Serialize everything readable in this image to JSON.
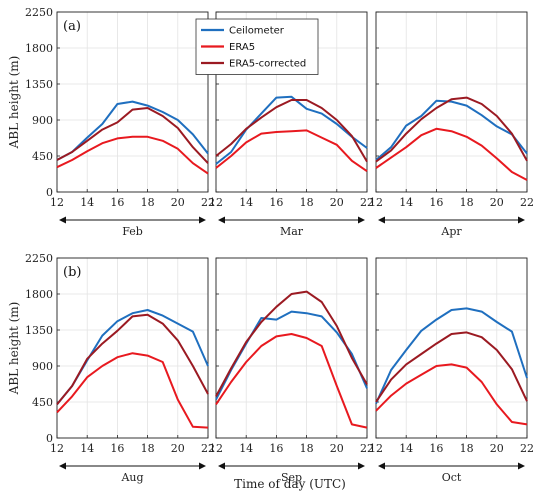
{
  "chart_data": {
    "type": "line",
    "x": [
      12,
      13,
      14,
      15,
      16,
      17,
      18,
      19,
      20,
      21,
      22
    ],
    "xticks": [
      12,
      14,
      16,
      18,
      20,
      22
    ],
    "yticks": [
      0,
      450,
      900,
      1350,
      1800,
      2250
    ],
    "xlim": [
      12,
      22
    ],
    "ylim": [
      0,
      2250
    ],
    "ylabel": "ABL height (m)",
    "xlabel": "Time of day (UTC)",
    "legend": {
      "placement": "top-center of panel (a)",
      "entries": [
        "Ceilometer",
        "ERA5",
        "ERA5-corrected"
      ]
    },
    "colors": {
      "Ceilometer": "#1f6fbf",
      "ERA5": "#e8191f",
      "ERA5-corrected": "#9b1a22"
    },
    "rows": [
      {
        "label": "(a)",
        "panels": [
          {
            "month": "Feb",
            "series": [
              {
                "name": "Ceilometer",
                "values": [
                  400,
                  500,
                  680,
                  850,
                  1100,
                  1130,
                  1080,
                  1000,
                  900,
                  720,
                  480
                ]
              },
              {
                "name": "ERA5",
                "values": [
                  310,
                  400,
                  510,
                  610,
                  670,
                  690,
                  690,
                  640,
                  540,
                  360,
                  230
                ]
              },
              {
                "name": "ERA5-corrected",
                "values": [
                  400,
                  500,
                  640,
                  780,
                  870,
                  1030,
                  1050,
                  950,
                  800,
                  560,
                  360
                ]
              }
            ]
          },
          {
            "month": "Mar",
            "series": [
              {
                "name": "Ceilometer",
                "values": [
                  350,
                  500,
                  780,
                  980,
                  1180,
                  1190,
                  1040,
                  980,
                  850,
                  690,
                  550
                ]
              },
              {
                "name": "ERA5",
                "values": [
                  300,
                  450,
                  620,
                  730,
                  750,
                  760,
                  770,
                  680,
                  590,
                  390,
                  260
                ]
              },
              {
                "name": "ERA5-corrected",
                "values": [
                  450,
                  600,
                  790,
                  930,
                  1060,
                  1150,
                  1150,
                  1050,
                  900,
                  700,
                  380
                ]
              }
            ]
          },
          {
            "month": "Apr",
            "series": [
              {
                "name": "Ceilometer",
                "values": [
                  400,
                  560,
                  830,
                  950,
                  1140,
                  1130,
                  1080,
                  960,
                  820,
                  720,
                  480
                ]
              },
              {
                "name": "ERA5",
                "values": [
                  300,
                  430,
                  560,
                  710,
                  790,
                  760,
                  690,
                  580,
                  420,
                  250,
                  150
                ]
              },
              {
                "name": "ERA5-corrected",
                "values": [
                  380,
                  520,
                  730,
                  910,
                  1050,
                  1160,
                  1180,
                  1100,
                  950,
                  730,
                  390
                ]
              }
            ]
          }
        ]
      },
      {
        "label": "(b)",
        "panels": [
          {
            "month": "Aug",
            "series": [
              {
                "name": "Ceilometer",
                "values": [
                  420,
                  650,
                  970,
                  1280,
                  1460,
                  1560,
                  1600,
                  1530,
                  1430,
                  1330,
                  900
                ]
              },
              {
                "name": "ERA5",
                "values": [
                  320,
                  520,
                  760,
                  900,
                  1010,
                  1060,
                  1030,
                  950,
                  480,
                  140,
                  130
                ]
              },
              {
                "name": "ERA5-corrected",
                "values": [
                  420,
                  650,
                  990,
                  1180,
                  1340,
                  1520,
                  1540,
                  1430,
                  1220,
                  900,
                  550
                ]
              }
            ]
          },
          {
            "month": "Sep",
            "series": [
              {
                "name": "Ceilometer",
                "values": [
                  480,
                  850,
                  1180,
                  1500,
                  1480,
                  1580,
                  1560,
                  1520,
                  1320,
                  1050,
                  620
                ]
              },
              {
                "name": "ERA5",
                "values": [
                  420,
                  700,
                  950,
                  1150,
                  1270,
                  1300,
                  1250,
                  1150,
                  650,
                  170,
                  130
                ]
              },
              {
                "name": "ERA5-corrected",
                "values": [
                  520,
                  870,
                  1200,
                  1450,
                  1640,
                  1800,
                  1830,
                  1700,
                  1400,
                  1000,
                  670
                ]
              }
            ]
          },
          {
            "month": "Oct",
            "series": [
              {
                "name": "Ceilometer",
                "values": [
                  430,
                  850,
                  1100,
                  1340,
                  1480,
                  1600,
                  1620,
                  1580,
                  1450,
                  1330,
                  750
                ]
              },
              {
                "name": "ERA5",
                "values": [
                  340,
                  530,
                  680,
                  790,
                  900,
                  920,
                  880,
                  700,
                  420,
                  200,
                  170
                ]
              },
              {
                "name": "ERA5-corrected",
                "values": [
                  450,
                  730,
                  920,
                  1050,
                  1180,
                  1300,
                  1320,
                  1260,
                  1100,
                  860,
                  460
                ]
              }
            ]
          }
        ]
      }
    ]
  }
}
